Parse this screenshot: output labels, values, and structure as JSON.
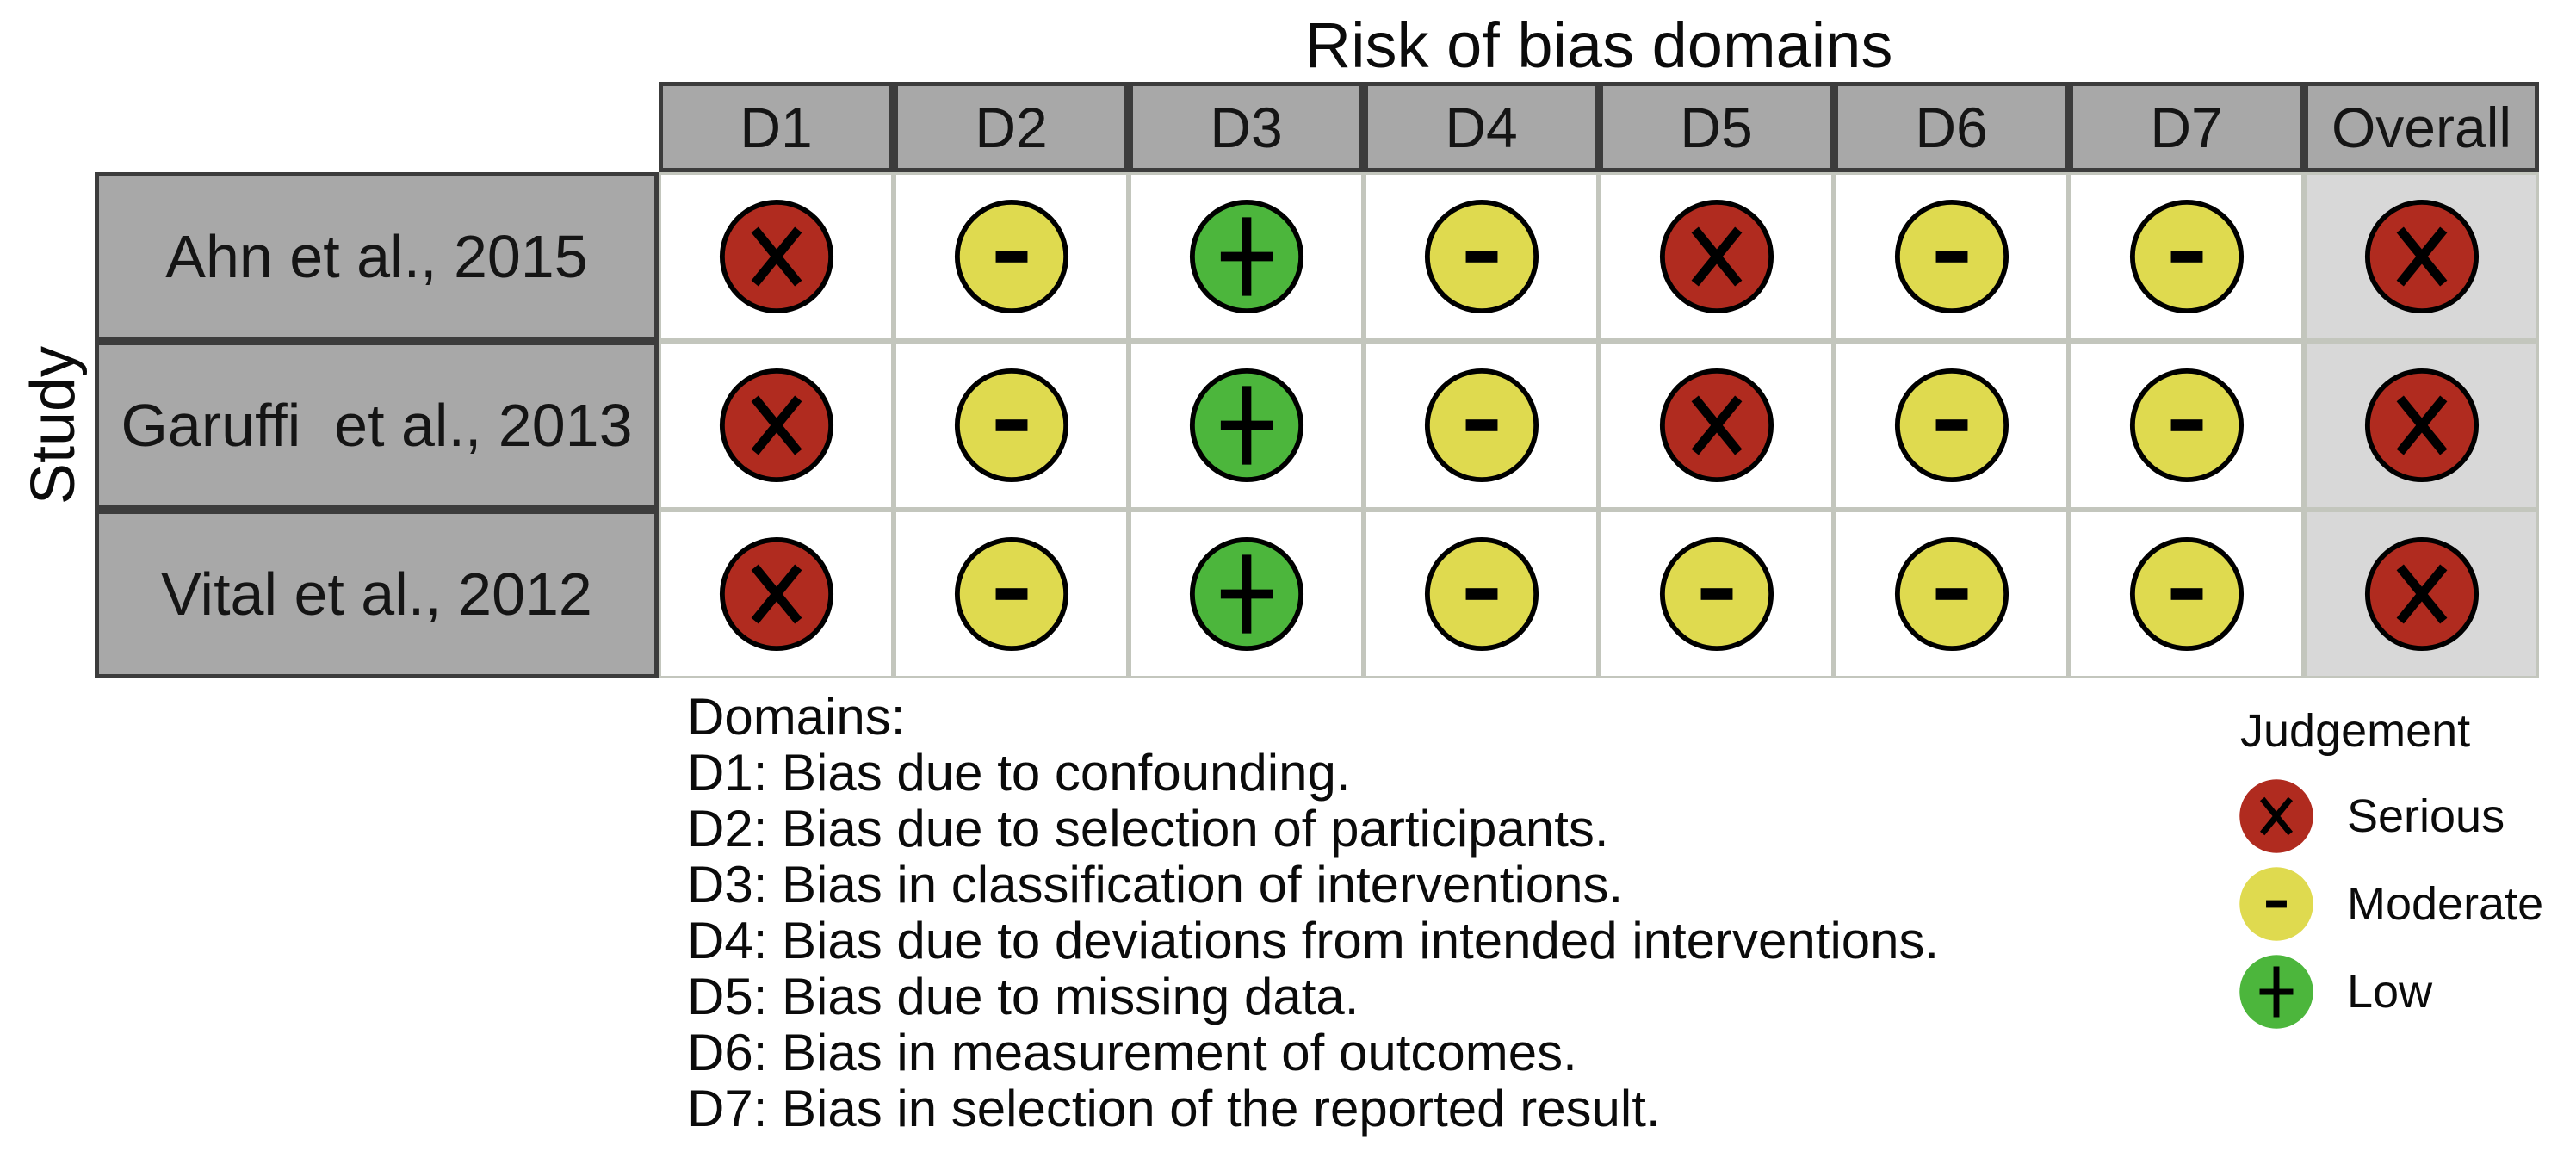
{
  "figure": {
    "title": "Risk of bias domains",
    "y_axis_label": "Study"
  },
  "table": {
    "columns": [
      "D1",
      "D2",
      "D3",
      "D4",
      "D5",
      "D6",
      "D7",
      "Overall"
    ],
    "rows": [
      {
        "study": "Ahn et al., 2015",
        "judgements": [
          "serious",
          "moderate",
          "low",
          "moderate",
          "serious",
          "moderate",
          "moderate",
          "serious"
        ]
      },
      {
        "study": "Garuffi  et al., 2013",
        "judgements": [
          "serious",
          "moderate",
          "low",
          "moderate",
          "serious",
          "moderate",
          "moderate",
          "serious"
        ]
      },
      {
        "study": "Vital et al., 2012",
        "judgements": [
          "serious",
          "moderate",
          "low",
          "moderate",
          "moderate",
          "moderate",
          "moderate",
          "serious"
        ]
      }
    ]
  },
  "judgements": {
    "serious": {
      "label": "Serious",
      "symbol": "X",
      "color": "#B02B1F"
    },
    "moderate": {
      "label": "Moderate",
      "symbol": "-",
      "color": "#DFDA4F"
    },
    "low": {
      "label": "Low",
      "symbol": "+",
      "color": "#4CB63C"
    }
  },
  "notes": {
    "heading": "Domains:",
    "items": [
      "D1: Bias due to confounding.",
      "D2: Bias due to selection of participants.",
      "D3: Bias in classification of interventions.",
      "D4: Bias due to deviations from intended interventions.",
      "D5: Bias due to missing data.",
      "D6: Bias in measurement of outcomes.",
      "D7: Bias in selection of the reported result."
    ]
  },
  "legend": {
    "title": "Judgement",
    "items": [
      {
        "key": "serious",
        "label": "Serious"
      },
      {
        "key": "moderate",
        "label": "Moderate"
      },
      {
        "key": "low",
        "label": "Low"
      }
    ]
  },
  "colors": {
    "header_bg": "#A8A8A8",
    "overall_column_bg": "#D8D8D8",
    "dark_border": "#3C3C3C",
    "grid_line": "#C3C6BD",
    "serious": "#B02B1F",
    "moderate": "#DFDA4F",
    "low": "#4CB63C",
    "symbol": "#000000"
  },
  "chart_data": {
    "type": "table",
    "title": "Risk of bias domains",
    "row_axis_label": "Study",
    "columns": [
      "D1",
      "D2",
      "D3",
      "D4",
      "D5",
      "D6",
      "D7",
      "Overall"
    ],
    "rows": [
      "Ahn et al., 2015",
      "Garuffi  et al., 2013",
      "Vital et al., 2012"
    ],
    "values": [
      [
        "Serious",
        "Moderate",
        "Low",
        "Moderate",
        "Serious",
        "Moderate",
        "Moderate",
        "Serious"
      ],
      [
        "Serious",
        "Moderate",
        "Low",
        "Moderate",
        "Serious",
        "Moderate",
        "Moderate",
        "Serious"
      ],
      [
        "Serious",
        "Moderate",
        "Low",
        "Moderate",
        "Moderate",
        "Moderate",
        "Moderate",
        "Serious"
      ]
    ],
    "legend": {
      "title": "Judgement",
      "entries": [
        {
          "label": "Serious",
          "symbol": "X",
          "color": "#B02B1F"
        },
        {
          "label": "Moderate",
          "symbol": "-",
          "color": "#DFDA4F"
        },
        {
          "label": "Low",
          "symbol": "+",
          "color": "#4CB63C"
        }
      ],
      "position": "bottom-right"
    },
    "footnotes": [
      "Domains:",
      "D1: Bias due to confounding.",
      "D2: Bias due to selection of participants.",
      "D3: Bias in classification of interventions.",
      "D4: Bias due to deviations from intended interventions.",
      "D5: Bias due to missing data.",
      "D6: Bias in measurement of outcomes.",
      "D7: Bias in selection of the reported result."
    ]
  }
}
